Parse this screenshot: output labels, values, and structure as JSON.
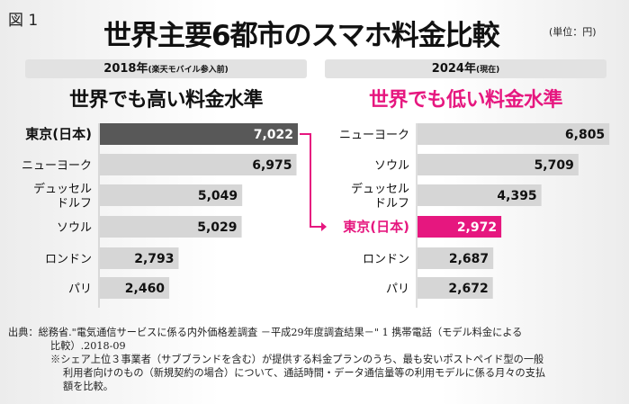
{
  "figure_label": "図 1",
  "title": "世界主要6都市のスマホ料金比較",
  "unit": "(単位：円)",
  "colors": {
    "highlight_pink": "#e6177f",
    "tokyo_2018": "#585858",
    "bar_gray": "#d6d6d6",
    "axis_gray": "#bdbdbd"
  },
  "panels": {
    "left": {
      "year": "2018年",
      "year_note": "(楽天モバイル参入前)",
      "headline": "世界でも高い料金水準"
    },
    "right": {
      "year": "2024年",
      "year_note": "(現在)",
      "headline": "世界でも低い料金水準"
    }
  },
  "chart_data": [
    {
      "type": "bar",
      "orientation": "horizontal",
      "title": "2018年 (楽天モバイル参入前)",
      "categories": [
        "東京(日本)",
        "ニューヨーク",
        "デュッセル|ドルフ",
        "ソウル",
        "ロンドン",
        "パリ"
      ],
      "values": [
        7022,
        6975,
        5049,
        5029,
        2793,
        2460
      ],
      "value_labels": [
        "7,022",
        "6,975",
        "5,049",
        "5,029",
        "2,793",
        "2,460"
      ],
      "highlight_index": 0,
      "xlim": [
        0,
        7022
      ],
      "grid": false
    },
    {
      "type": "bar",
      "orientation": "horizontal",
      "title": "2024年 (現在)",
      "categories": [
        "ニューヨーク",
        "ソウル",
        "デュッセル|ドルフ",
        "東京(日本)",
        "ロンドン",
        "パリ"
      ],
      "values": [
        6805,
        5709,
        4395,
        2972,
        2687,
        2672
      ],
      "value_labels": [
        "6,805",
        "5,709",
        "4,395",
        "2,972",
        "2,687",
        "2,672"
      ],
      "highlight_index": 3,
      "xlim": [
        0,
        7022
      ],
      "grid": false
    }
  ],
  "source": {
    "line1": "出典：総務省.\"電気通信サービスに係る内外価格差調査 －平成29年度調査結果－\" 1 携帯電話（モデル料金による",
    "line2": "比較）.2018-09",
    "line3": "※シェア上位３事業者（サブブランドを含む）が提供する料金プランのうち、最も安いポストペイド型の一般",
    "line4": "利用者向けのもの（新規契約の場合）について、通話時間・データ通信量等の利用モデルに係る月々の支払",
    "line5": "額を比較。"
  }
}
